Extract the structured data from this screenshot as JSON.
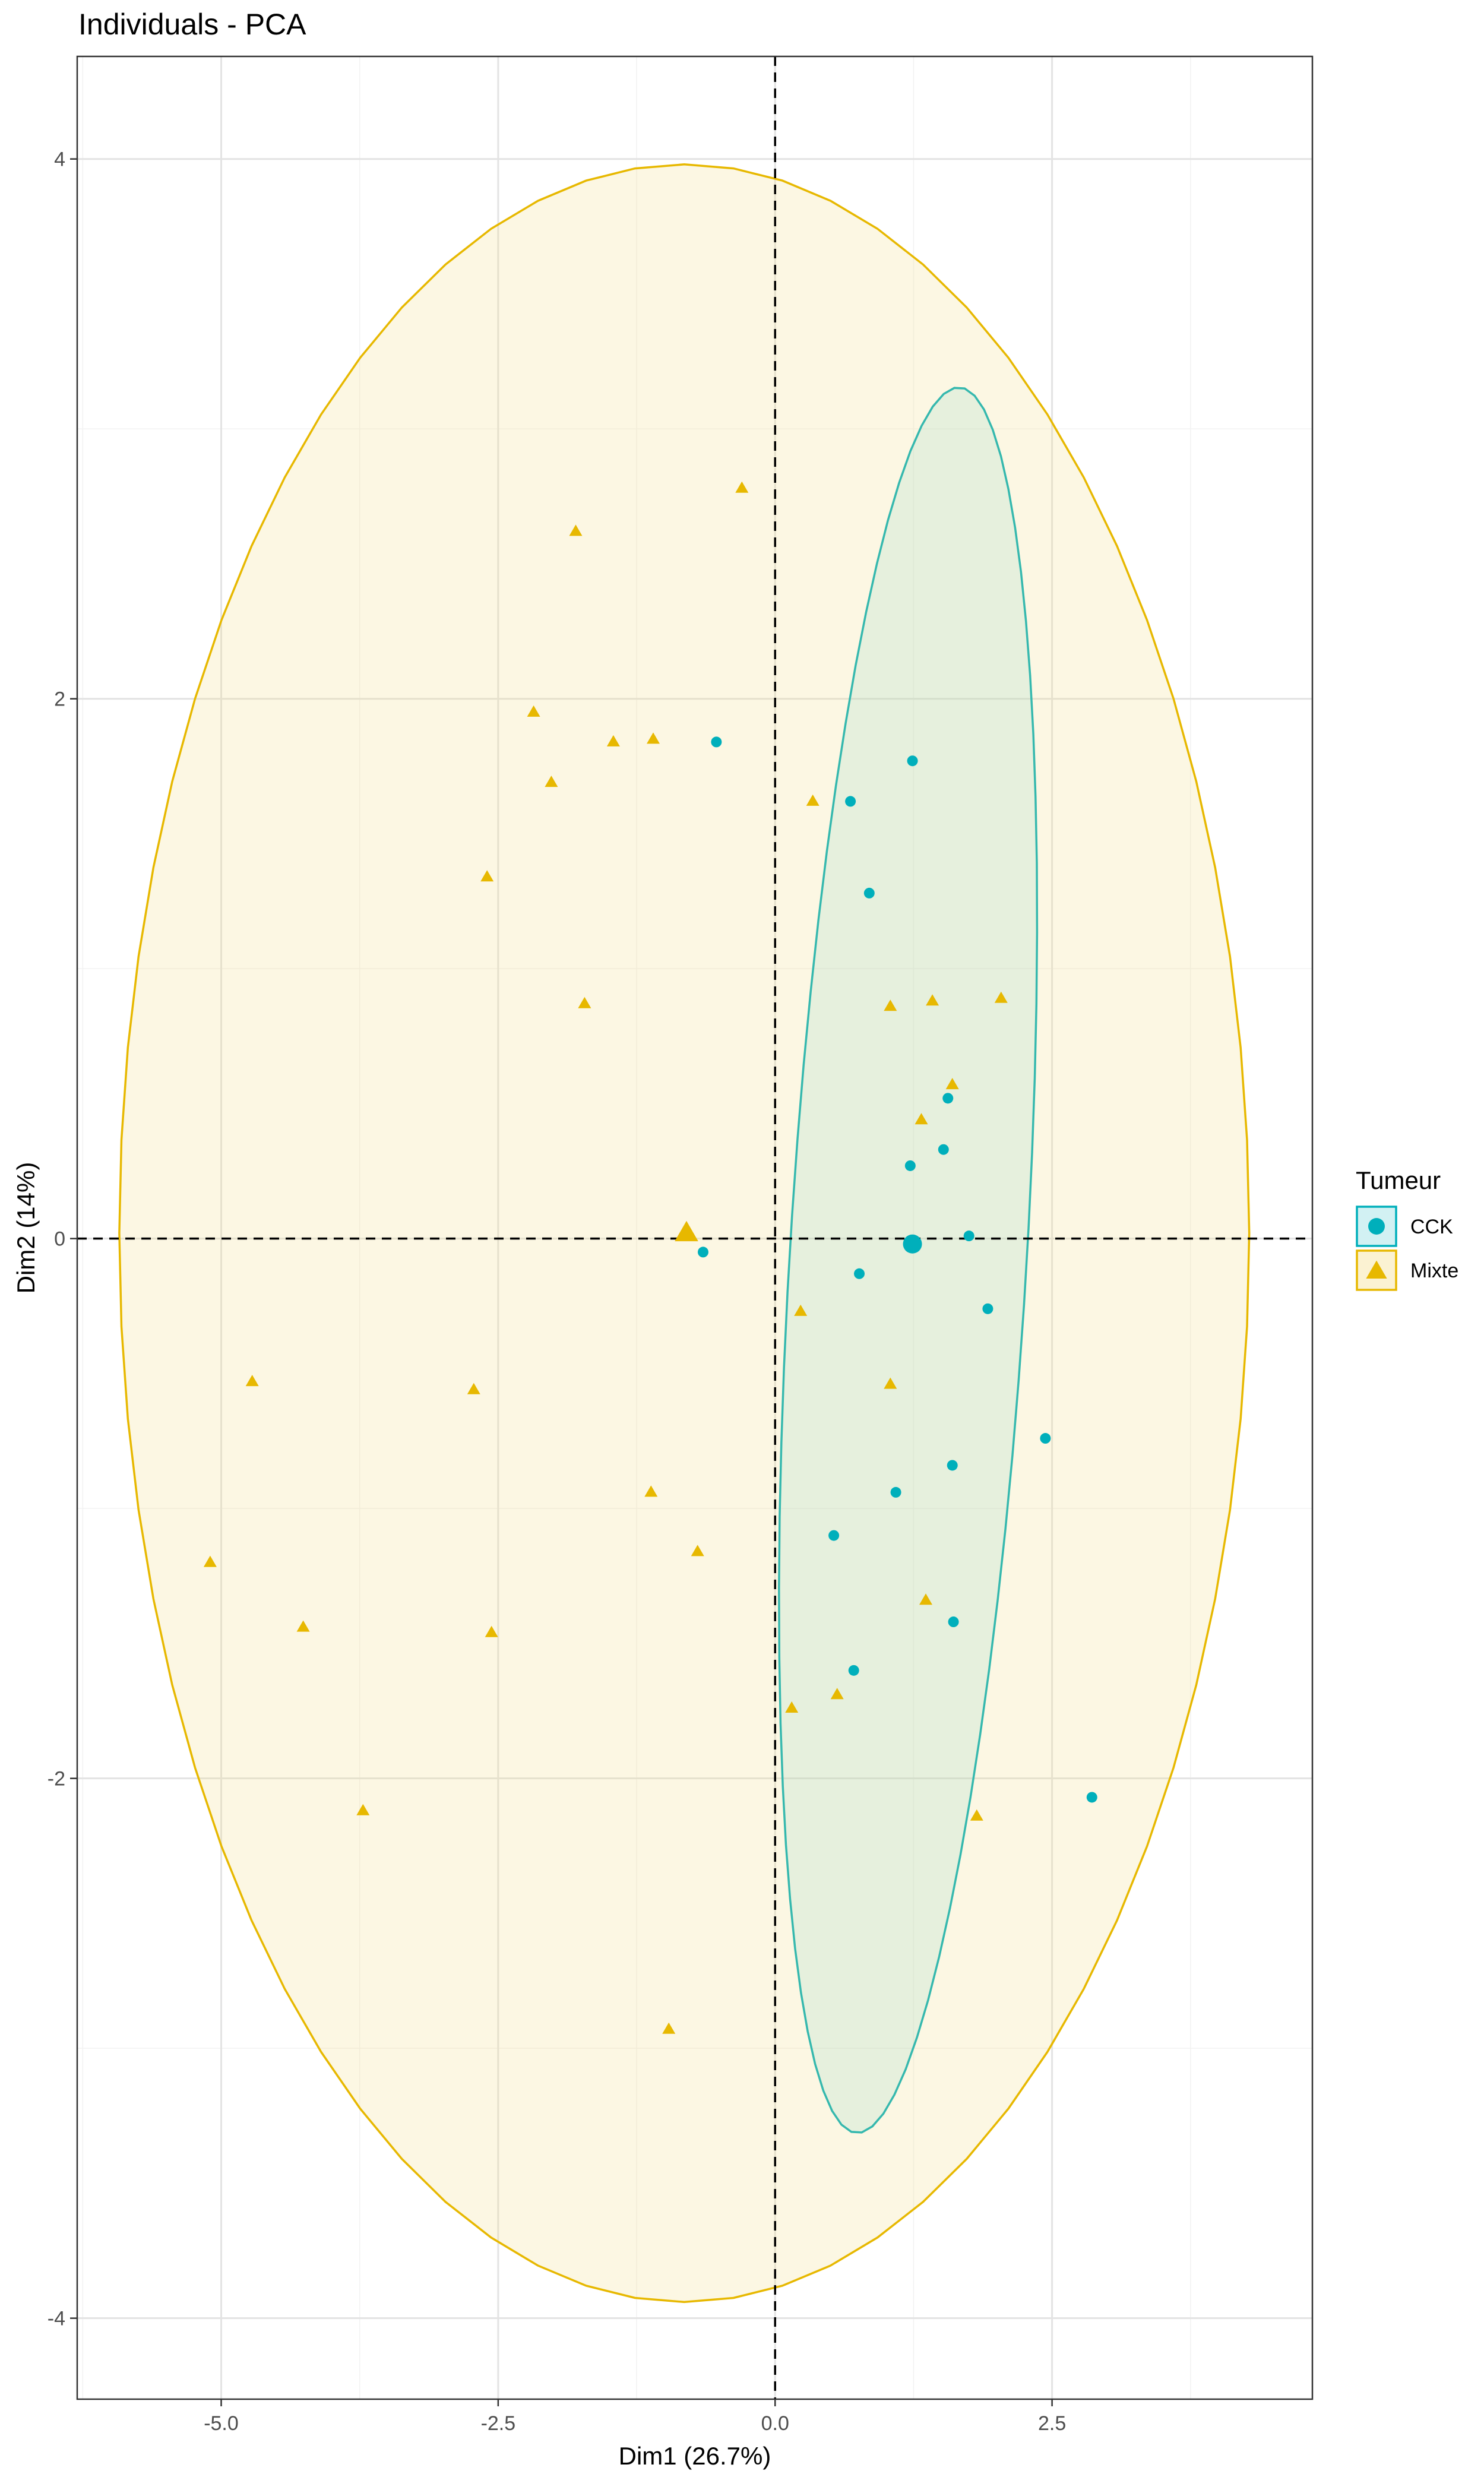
{
  "chart_data": {
    "type": "scatter",
    "title": "Individuals - PCA",
    "xlabel": "Dim1 (26.7%)",
    "ylabel": "Dim2 (14%)",
    "xlim": [
      -6.3,
      4.85
    ],
    "ylim": [
      -4.3,
      4.38
    ],
    "x_ticks": [
      -5.0,
      -2.5,
      0.0,
      2.5
    ],
    "x_tick_labels": [
      "-5.0",
      "-2.5",
      "0.0",
      "2.5"
    ],
    "y_ticks": [
      -4,
      -2,
      0,
      2,
      4
    ],
    "y_tick_labels": [
      "-4",
      "-2",
      "0",
      "2",
      "4"
    ],
    "grid": true,
    "reference_lines": {
      "x": 0,
      "y": 0
    },
    "legend": {
      "title": "Tumeur",
      "position": "right"
    },
    "series": [
      {
        "name": "CCK",
        "marker": "circle",
        "color": "#00AFBB",
        "fill": "#7FD7DD",
        "centroid": [
          1.24,
          -0.02
        ],
        "ellipse": {
          "cx": 1.2,
          "cy": -0.08,
          "rx": 1.06,
          "ry": 3.27,
          "angle_deg": -9
        },
        "points": [
          [
            -0.53,
            1.84
          ],
          [
            1.24,
            1.77
          ],
          [
            0.68,
            1.62
          ],
          [
            0.85,
            1.28
          ],
          [
            1.56,
            0.52
          ],
          [
            1.22,
            0.27
          ],
          [
            1.52,
            0.33
          ],
          [
            1.75,
            0.01
          ],
          [
            -0.65,
            -0.05
          ],
          [
            0.76,
            -0.13
          ],
          [
            1.92,
            -0.26
          ],
          [
            2.44,
            -0.74
          ],
          [
            1.6,
            -0.84
          ],
          [
            1.09,
            -0.94
          ],
          [
            0.53,
            -1.1
          ],
          [
            1.61,
            -1.42
          ],
          [
            0.71,
            -1.6
          ],
          [
            2.86,
            -2.07
          ]
        ]
      },
      {
        "name": "Mixte",
        "marker": "triangle",
        "color": "#E7B800",
        "fill": "#F3DB7F",
        "centroid": [
          -0.8,
          0.02
        ],
        "ellipse": {
          "cx": -0.82,
          "cy": 0.02,
          "rx": 5.1,
          "ry": 3.96,
          "angle_deg": 0
        },
        "points": [
          [
            -0.3,
            2.78
          ],
          [
            -1.8,
            2.62
          ],
          [
            -2.18,
            1.95
          ],
          [
            -1.46,
            1.84
          ],
          [
            -1.1,
            1.85
          ],
          [
            -2.02,
            1.69
          ],
          [
            0.34,
            1.62
          ],
          [
            -2.6,
            1.34
          ],
          [
            -1.72,
            0.87
          ],
          [
            1.04,
            0.86
          ],
          [
            1.42,
            0.88
          ],
          [
            2.04,
            0.89
          ],
          [
            1.6,
            0.57
          ],
          [
            1.32,
            0.44
          ],
          [
            0.23,
            -0.27
          ],
          [
            -4.72,
            -0.53
          ],
          [
            -2.72,
            -0.56
          ],
          [
            1.04,
            -0.54
          ],
          [
            -1.12,
            -0.94
          ],
          [
            -0.7,
            -1.16
          ],
          [
            -5.1,
            -1.2
          ],
          [
            1.36,
            -1.34
          ],
          [
            -4.26,
            -1.44
          ],
          [
            -2.56,
            -1.46
          ],
          [
            0.56,
            -1.69
          ],
          [
            0.15,
            -1.74
          ],
          [
            -3.72,
            -2.12
          ],
          [
            1.82,
            -2.14
          ],
          [
            -0.96,
            -2.93
          ]
        ]
      }
    ]
  }
}
